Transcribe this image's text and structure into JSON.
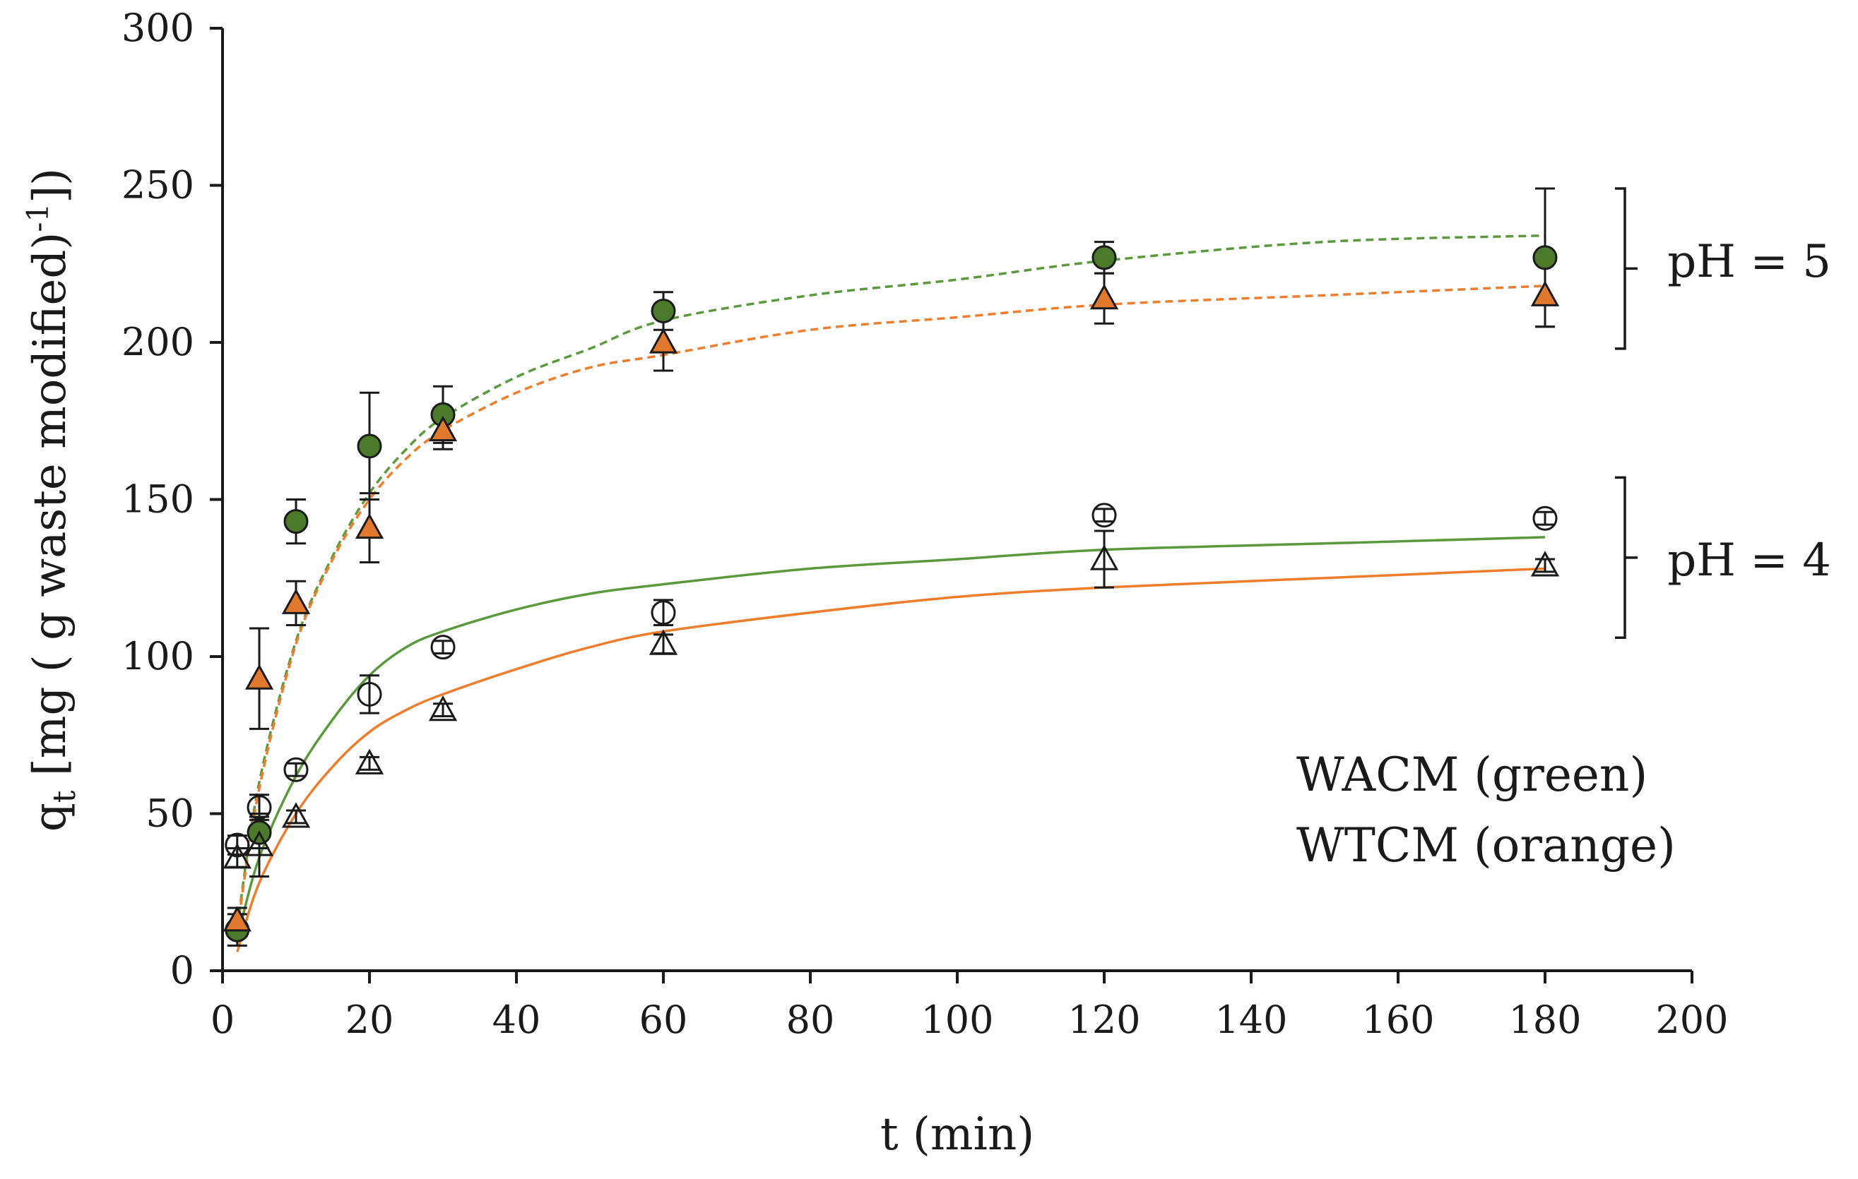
{
  "chart_data": {
    "type": "scatter",
    "xlabel": "t (min)",
    "ylabel_main": "q",
    "ylabel_sub": "t",
    "ylabel_rest": " [mg ( g waste modified)",
    "ylabel_sup": "-1",
    "ylabel_end": "])",
    "xlim": [
      0,
      200
    ],
    "ylim": [
      0,
      300
    ],
    "xticks": [
      0,
      20,
      40,
      60,
      80,
      100,
      120,
      140,
      160,
      180,
      200
    ],
    "yticks": [
      0,
      50,
      100,
      150,
      200,
      250,
      300
    ],
    "grid": false,
    "legend": [
      "WACM (green)",
      "WTCM (orange)"
    ],
    "annotations": [
      {
        "text": "pH = 5",
        "y_range": [
          198,
          249
        ]
      },
      {
        "text": "pH = 4",
        "y_range": [
          106,
          157
        ]
      }
    ],
    "colors": {
      "green": "#4a7a2a",
      "green_line": "#5a9a3c",
      "orange": "#e0782e",
      "orange_line": "#ee7d2c",
      "black": "#1a1a1a"
    },
    "series": [
      {
        "name": "WACM pH 5",
        "marker": "circle",
        "filled": true,
        "color": "#4a7a2a",
        "points": [
          {
            "x": 2,
            "y": 13,
            "err": 5
          },
          {
            "x": 5,
            "y": 44,
            "err": 5
          },
          {
            "x": 10,
            "y": 143,
            "err": 7
          },
          {
            "x": 20,
            "y": 167,
            "err": 17
          },
          {
            "x": 30,
            "y": 177,
            "err": 9
          },
          {
            "x": 60,
            "y": 210,
            "err": 6
          },
          {
            "x": 120,
            "y": 227,
            "err": 5
          },
          {
            "x": 180,
            "y": 227,
            "err": 22
          }
        ]
      },
      {
        "name": "WTCM pH 5",
        "marker": "triangle",
        "filled": true,
        "color": "#e0782e",
        "points": [
          {
            "x": 2,
            "y": 16,
            "err": 4
          },
          {
            "x": 5,
            "y": 93,
            "err": 16
          },
          {
            "x": 10,
            "y": 117,
            "err": 7
          },
          {
            "x": 20,
            "y": 141,
            "err": 11
          },
          {
            "x": 30,
            "y": 172,
            "err": 6
          },
          {
            "x": 60,
            "y": 200,
            "err": 9
          },
          {
            "x": 120,
            "y": 214,
            "err": 8
          },
          {
            "x": 180,
            "y": 215,
            "err": 10
          }
        ]
      },
      {
        "name": "WACM pH 4",
        "marker": "circle",
        "filled": false,
        "color": "#1a1a1a",
        "points": [
          {
            "x": 2,
            "y": 40,
            "err": 3
          },
          {
            "x": 5,
            "y": 52,
            "err": 4
          },
          {
            "x": 10,
            "y": 64,
            "err": 2
          },
          {
            "x": 20,
            "y": 88,
            "err": 6
          },
          {
            "x": 30,
            "y": 103,
            "err": 2
          },
          {
            "x": 60,
            "y": 114,
            "err": 4
          },
          {
            "x": 120,
            "y": 145,
            "err": 2
          },
          {
            "x": 180,
            "y": 144,
            "err": 2
          }
        ]
      },
      {
        "name": "WTCM pH 4",
        "marker": "triangle",
        "filled": false,
        "color": "#1a1a1a",
        "points": [
          {
            "x": 2,
            "y": 36,
            "err": 3
          },
          {
            "x": 5,
            "y": 40,
            "err": 10
          },
          {
            "x": 10,
            "y": 49,
            "err": 2
          },
          {
            "x": 20,
            "y": 66,
            "err": 2
          },
          {
            "x": 30,
            "y": 83,
            "err": 2
          },
          {
            "x": 60,
            "y": 104,
            "err": 3
          },
          {
            "x": 120,
            "y": 131,
            "err": 9
          },
          {
            "x": 180,
            "y": 129,
            "err": 2
          }
        ]
      }
    ],
    "fits": [
      {
        "name": "WACM pH 5 fit",
        "color": "#5a9a3c",
        "dashed": true,
        "points": [
          [
            2,
            14
          ],
          [
            5,
            60
          ],
          [
            10,
            105
          ],
          [
            15,
            132
          ],
          [
            20,
            152
          ],
          [
            25,
            166
          ],
          [
            30,
            176
          ],
          [
            40,
            189
          ],
          [
            50,
            198
          ],
          [
            60,
            207
          ],
          [
            80,
            215
          ],
          [
            100,
            220
          ],
          [
            120,
            226
          ],
          [
            150,
            232
          ],
          [
            180,
            234
          ]
        ]
      },
      {
        "name": "WTCM pH 5 fit",
        "color": "#ee7d2c",
        "dashed": true,
        "points": [
          [
            2,
            13
          ],
          [
            5,
            58
          ],
          [
            10,
            104
          ],
          [
            15,
            131
          ],
          [
            20,
            150
          ],
          [
            25,
            163
          ],
          [
            30,
            172
          ],
          [
            40,
            184
          ],
          [
            50,
            192
          ],
          [
            60,
            196
          ],
          [
            80,
            204
          ],
          [
            100,
            208
          ],
          [
            120,
            212
          ],
          [
            150,
            215
          ],
          [
            180,
            218
          ]
        ]
      },
      {
        "name": "WACM pH 4 fit",
        "color": "#5a9a3c",
        "dashed": false,
        "points": [
          [
            2,
            10
          ],
          [
            5,
            36
          ],
          [
            10,
            62
          ],
          [
            15,
            80
          ],
          [
            20,
            94
          ],
          [
            25,
            103
          ],
          [
            30,
            108
          ],
          [
            40,
            115
          ],
          [
            50,
            120
          ],
          [
            60,
            123
          ],
          [
            80,
            128
          ],
          [
            100,
            131
          ],
          [
            120,
            134
          ],
          [
            150,
            136
          ],
          [
            180,
            138
          ]
        ]
      },
      {
        "name": "WTCM pH 4 fit",
        "color": "#ee7d2c",
        "dashed": false,
        "points": [
          [
            2,
            6
          ],
          [
            5,
            28
          ],
          [
            10,
            50
          ],
          [
            15,
            65
          ],
          [
            20,
            76
          ],
          [
            25,
            83
          ],
          [
            30,
            88
          ],
          [
            40,
            96
          ],
          [
            50,
            103
          ],
          [
            60,
            108
          ],
          [
            80,
            114
          ],
          [
            100,
            119
          ],
          [
            120,
            122
          ],
          [
            150,
            125
          ],
          [
            180,
            128
          ]
        ]
      }
    ]
  }
}
